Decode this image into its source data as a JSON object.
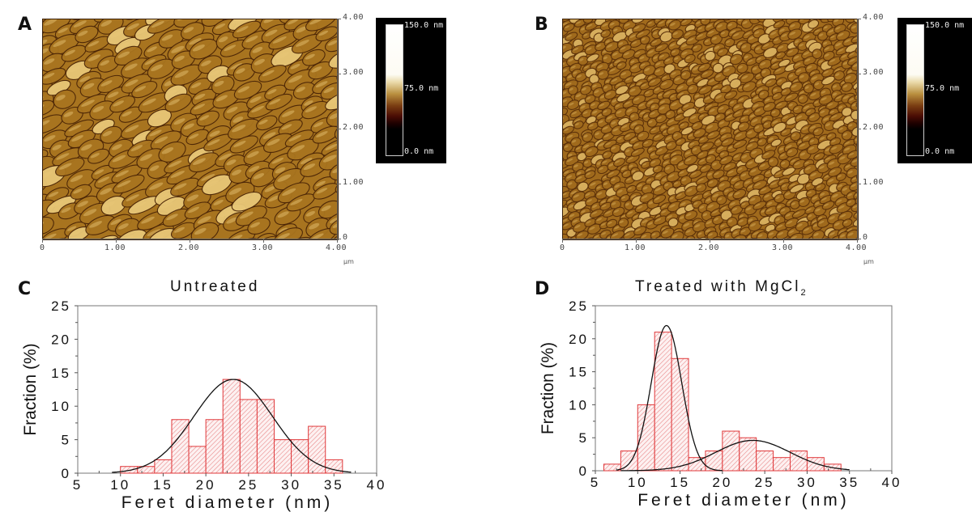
{
  "panels": {
    "A": {
      "label": "A",
      "image_description": "AFM topography, untreated surface",
      "x_ticks": [
        "0",
        "1.00",
        "2.00",
        "3.00",
        "4.00"
      ],
      "y_ticks": [
        "4.00",
        "3.00",
        "2.00",
        "1.00",
        "0"
      ],
      "unit": "μm",
      "colorbar": {
        "max": "150.0 nm",
        "mid": "75.0 nm",
        "min": "0.0 nm"
      }
    },
    "B": {
      "label": "B",
      "image_description": "AFM topography, surface treated with MgCl2",
      "x_ticks": [
        "0",
        "1.00",
        "2.00",
        "3.00",
        "4.00"
      ],
      "y_ticks": [
        "4.00",
        "3.00",
        "2.00",
        "1.00",
        "0"
      ],
      "unit": "μm",
      "colorbar": {
        "max": "150.0 nm",
        "mid": "75.0 nm",
        "min": "0.0 nm"
      }
    },
    "C": {
      "label": "C",
      "title": "Untreated"
    },
    "D": {
      "label": "D",
      "title_main": "Treated with MgCl",
      "title_sub": "2"
    }
  },
  "colors": {
    "bar_edge": "#e0393b",
    "bar_hatch": "#e05a5c",
    "fit_line": "#111111",
    "afm_base": "#a8741f"
  },
  "chart_data": [
    {
      "type": "bar",
      "title": "Untreated",
      "xlabel": "Feret diameter (nm)",
      "ylabel": "Fraction (%)",
      "xlim": [
        5,
        40
      ],
      "ylim": [
        0,
        25
      ],
      "x_ticks": [
        5,
        10,
        15,
        20,
        25,
        30,
        35,
        40
      ],
      "y_ticks": [
        0,
        5,
        10,
        15,
        20,
        25
      ],
      "bin_width": 2,
      "bins": [
        {
          "start": 10,
          "value": 1
        },
        {
          "start": 12,
          "value": 1
        },
        {
          "start": 14,
          "value": 2
        },
        {
          "start": 16,
          "value": 8
        },
        {
          "start": 18,
          "value": 4
        },
        {
          "start": 20,
          "value": 8
        },
        {
          "start": 22,
          "value": 14
        },
        {
          "start": 24,
          "value": 11
        },
        {
          "start": 26,
          "value": 11
        },
        {
          "start": 28,
          "value": 5
        },
        {
          "start": 30,
          "value": 5
        },
        {
          "start": 32,
          "value": 7
        },
        {
          "start": 34,
          "value": 2
        }
      ],
      "fits": [
        {
          "type": "gaussian",
          "center": 23.2,
          "amplitude": 14,
          "sigma": 4.6,
          "range": [
            9,
            37
          ]
        }
      ]
    },
    {
      "type": "bar",
      "title": "Treated with MgCl2",
      "xlabel": "Feret diameter (nm)",
      "ylabel": "Fraction (%)",
      "xlim": [
        5,
        40
      ],
      "ylim": [
        0,
        25
      ],
      "x_ticks": [
        5,
        10,
        15,
        20,
        25,
        30,
        35,
        40
      ],
      "y_ticks": [
        0,
        5,
        10,
        15,
        20,
        25
      ],
      "bin_width": 2,
      "bins": [
        {
          "start": 6,
          "value": 1
        },
        {
          "start": 8,
          "value": 3
        },
        {
          "start": 10,
          "value": 10
        },
        {
          "start": 12,
          "value": 21
        },
        {
          "start": 14,
          "value": 17
        },
        {
          "start": 16,
          "value": 2
        },
        {
          "start": 18,
          "value": 3
        },
        {
          "start": 20,
          "value": 6
        },
        {
          "start": 22,
          "value": 5
        },
        {
          "start": 24,
          "value": 3
        },
        {
          "start": 26,
          "value": 2
        },
        {
          "start": 28,
          "value": 3
        },
        {
          "start": 30,
          "value": 2
        },
        {
          "start": 32,
          "value": 1
        }
      ],
      "fits": [
        {
          "type": "gaussian",
          "center": 13.4,
          "amplitude": 22,
          "sigma": 1.8,
          "range": [
            7.5,
            20
          ]
        },
        {
          "type": "gaussian",
          "center": 23.6,
          "amplitude": 4.6,
          "sigma": 4.4,
          "range": [
            8,
            35
          ]
        }
      ]
    }
  ]
}
